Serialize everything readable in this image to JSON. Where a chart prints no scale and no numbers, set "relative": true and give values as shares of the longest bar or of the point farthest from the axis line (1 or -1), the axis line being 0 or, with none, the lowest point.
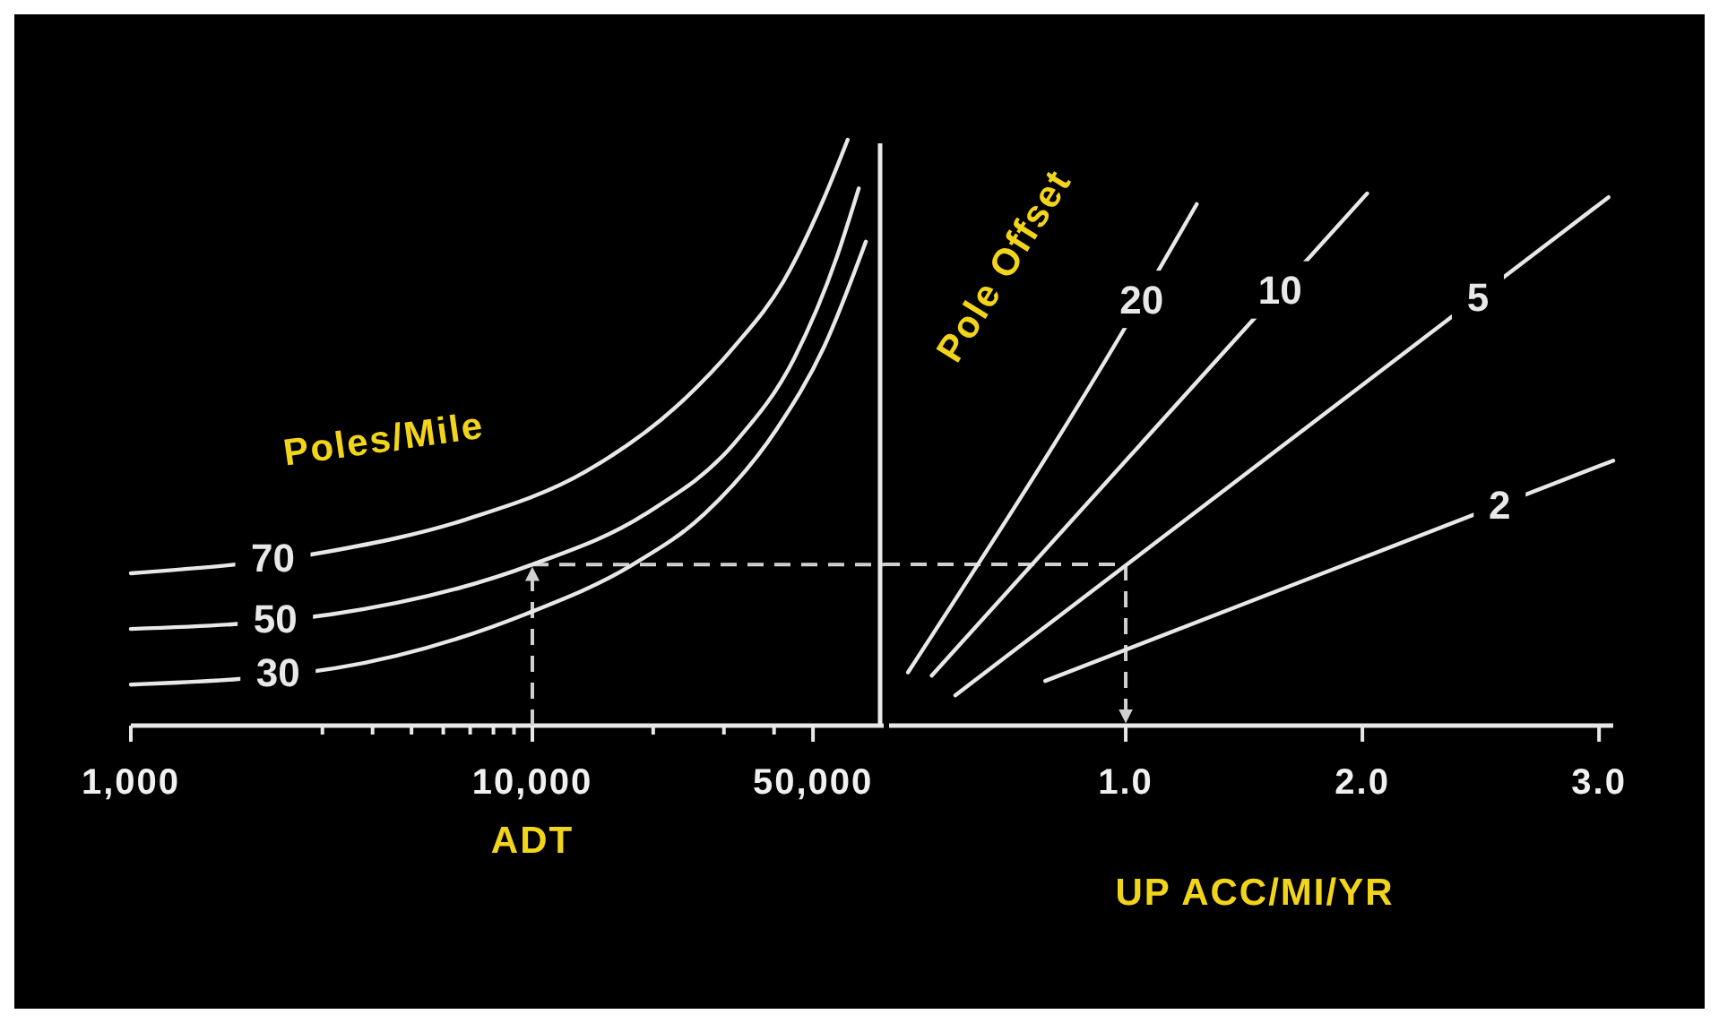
{
  "chart_data": [
    {
      "type": "line",
      "legend_title": "Poles/Mile",
      "xlabel": "ADT",
      "log": "x",
      "relative": true,
      "tick_labels": "x",
      "xlim": [
        1000,
        75000
      ],
      "xticks": [
        {
          "value": 1000,
          "label": "1,000"
        },
        {
          "value": 3000,
          "label": null
        },
        {
          "value": 4000,
          "label": null
        },
        {
          "value": 5000,
          "label": null
        },
        {
          "value": 6000,
          "label": null
        },
        {
          "value": 7000,
          "label": null
        },
        {
          "value": 8000,
          "label": null
        },
        {
          "value": 9000,
          "label": null
        },
        {
          "value": 10000,
          "label": "10,000"
        },
        {
          "value": 20000,
          "label": null
        },
        {
          "value": 30000,
          "label": null
        },
        {
          "value": 40000,
          "label": null
        },
        {
          "value": 50000,
          "label": "50,000"
        }
      ],
      "series": [
        {
          "name": "70",
          "color": "#e8e8e8",
          "x": [
            1000,
            3100,
            6840,
            13600,
            22800,
            31950,
            42200,
            53400,
            61000
          ],
          "values": [
            0.26,
            0.297,
            0.352,
            0.434,
            0.544,
            0.648,
            0.758,
            0.902,
            1.0
          ]
        },
        {
          "name": "50",
          "color": "#e8e8e8",
          "x": [
            1000,
            3160,
            10000,
            19100,
            31950,
            44900,
            57400,
            65000
          ],
          "values": [
            0.165,
            0.19,
            0.275,
            0.361,
            0.483,
            0.627,
            0.801,
            0.917
          ]
        },
        {
          "name": "30",
          "color": "#e8e8e8",
          "x": [
            1000,
            3230,
            9600,
            17800,
            26800,
            40500,
            53400,
            67700
          ],
          "values": [
            0.07,
            0.098,
            0.19,
            0.275,
            0.361,
            0.505,
            0.648,
            0.826
          ]
        }
      ],
      "ref_lines": [
        {
          "axis": "x",
          "value": 10000,
          "color": "#d0d0d0",
          "line_style": "dashed"
        },
        {
          "axis": "y",
          "value": 0.275,
          "color": "#d0d0d0",
          "line_style": "dashed"
        }
      ]
    },
    {
      "type": "line",
      "legend_title": "Pole Offset",
      "xlabel": "UP ACC/MI/YR",
      "relative": true,
      "tick_labels": "x",
      "xlim": [
        0,
        3.06
      ],
      "xticks": [
        {
          "value": 1,
          "label": "1.0"
        },
        {
          "value": 2,
          "label": "2.0"
        },
        {
          "value": 3,
          "label": "3.0"
        }
      ],
      "series": [
        {
          "name": "20",
          "color": "#e8e8e8",
          "x": [
            0.08,
            1.0,
            1.3
          ],
          "values": [
            0.1,
            0.75,
            0.98
          ]
        },
        {
          "name": "10",
          "color": "#e8e8e8",
          "x": [
            0.18,
            2.02
          ],
          "values": [
            0.094,
            1.0
          ]
        },
        {
          "name": "5",
          "color": "#e8e8e8",
          "x": [
            0.28,
            3.04
          ],
          "values": [
            0.057,
            0.993
          ]
        },
        {
          "name": "2",
          "color": "#e8e8e8",
          "x": [
            0.66,
            3.06
          ],
          "values": [
            0.084,
            0.498
          ]
        }
      ],
      "ref_lines": [
        {
          "axis": "y",
          "value": 0.303,
          "color": "#d0d0d0",
          "line_style": "dashed"
        },
        {
          "axis": "x",
          "value": 1,
          "color": "#d0d0d0",
          "line_style": "dashed"
        }
      ]
    }
  ]
}
